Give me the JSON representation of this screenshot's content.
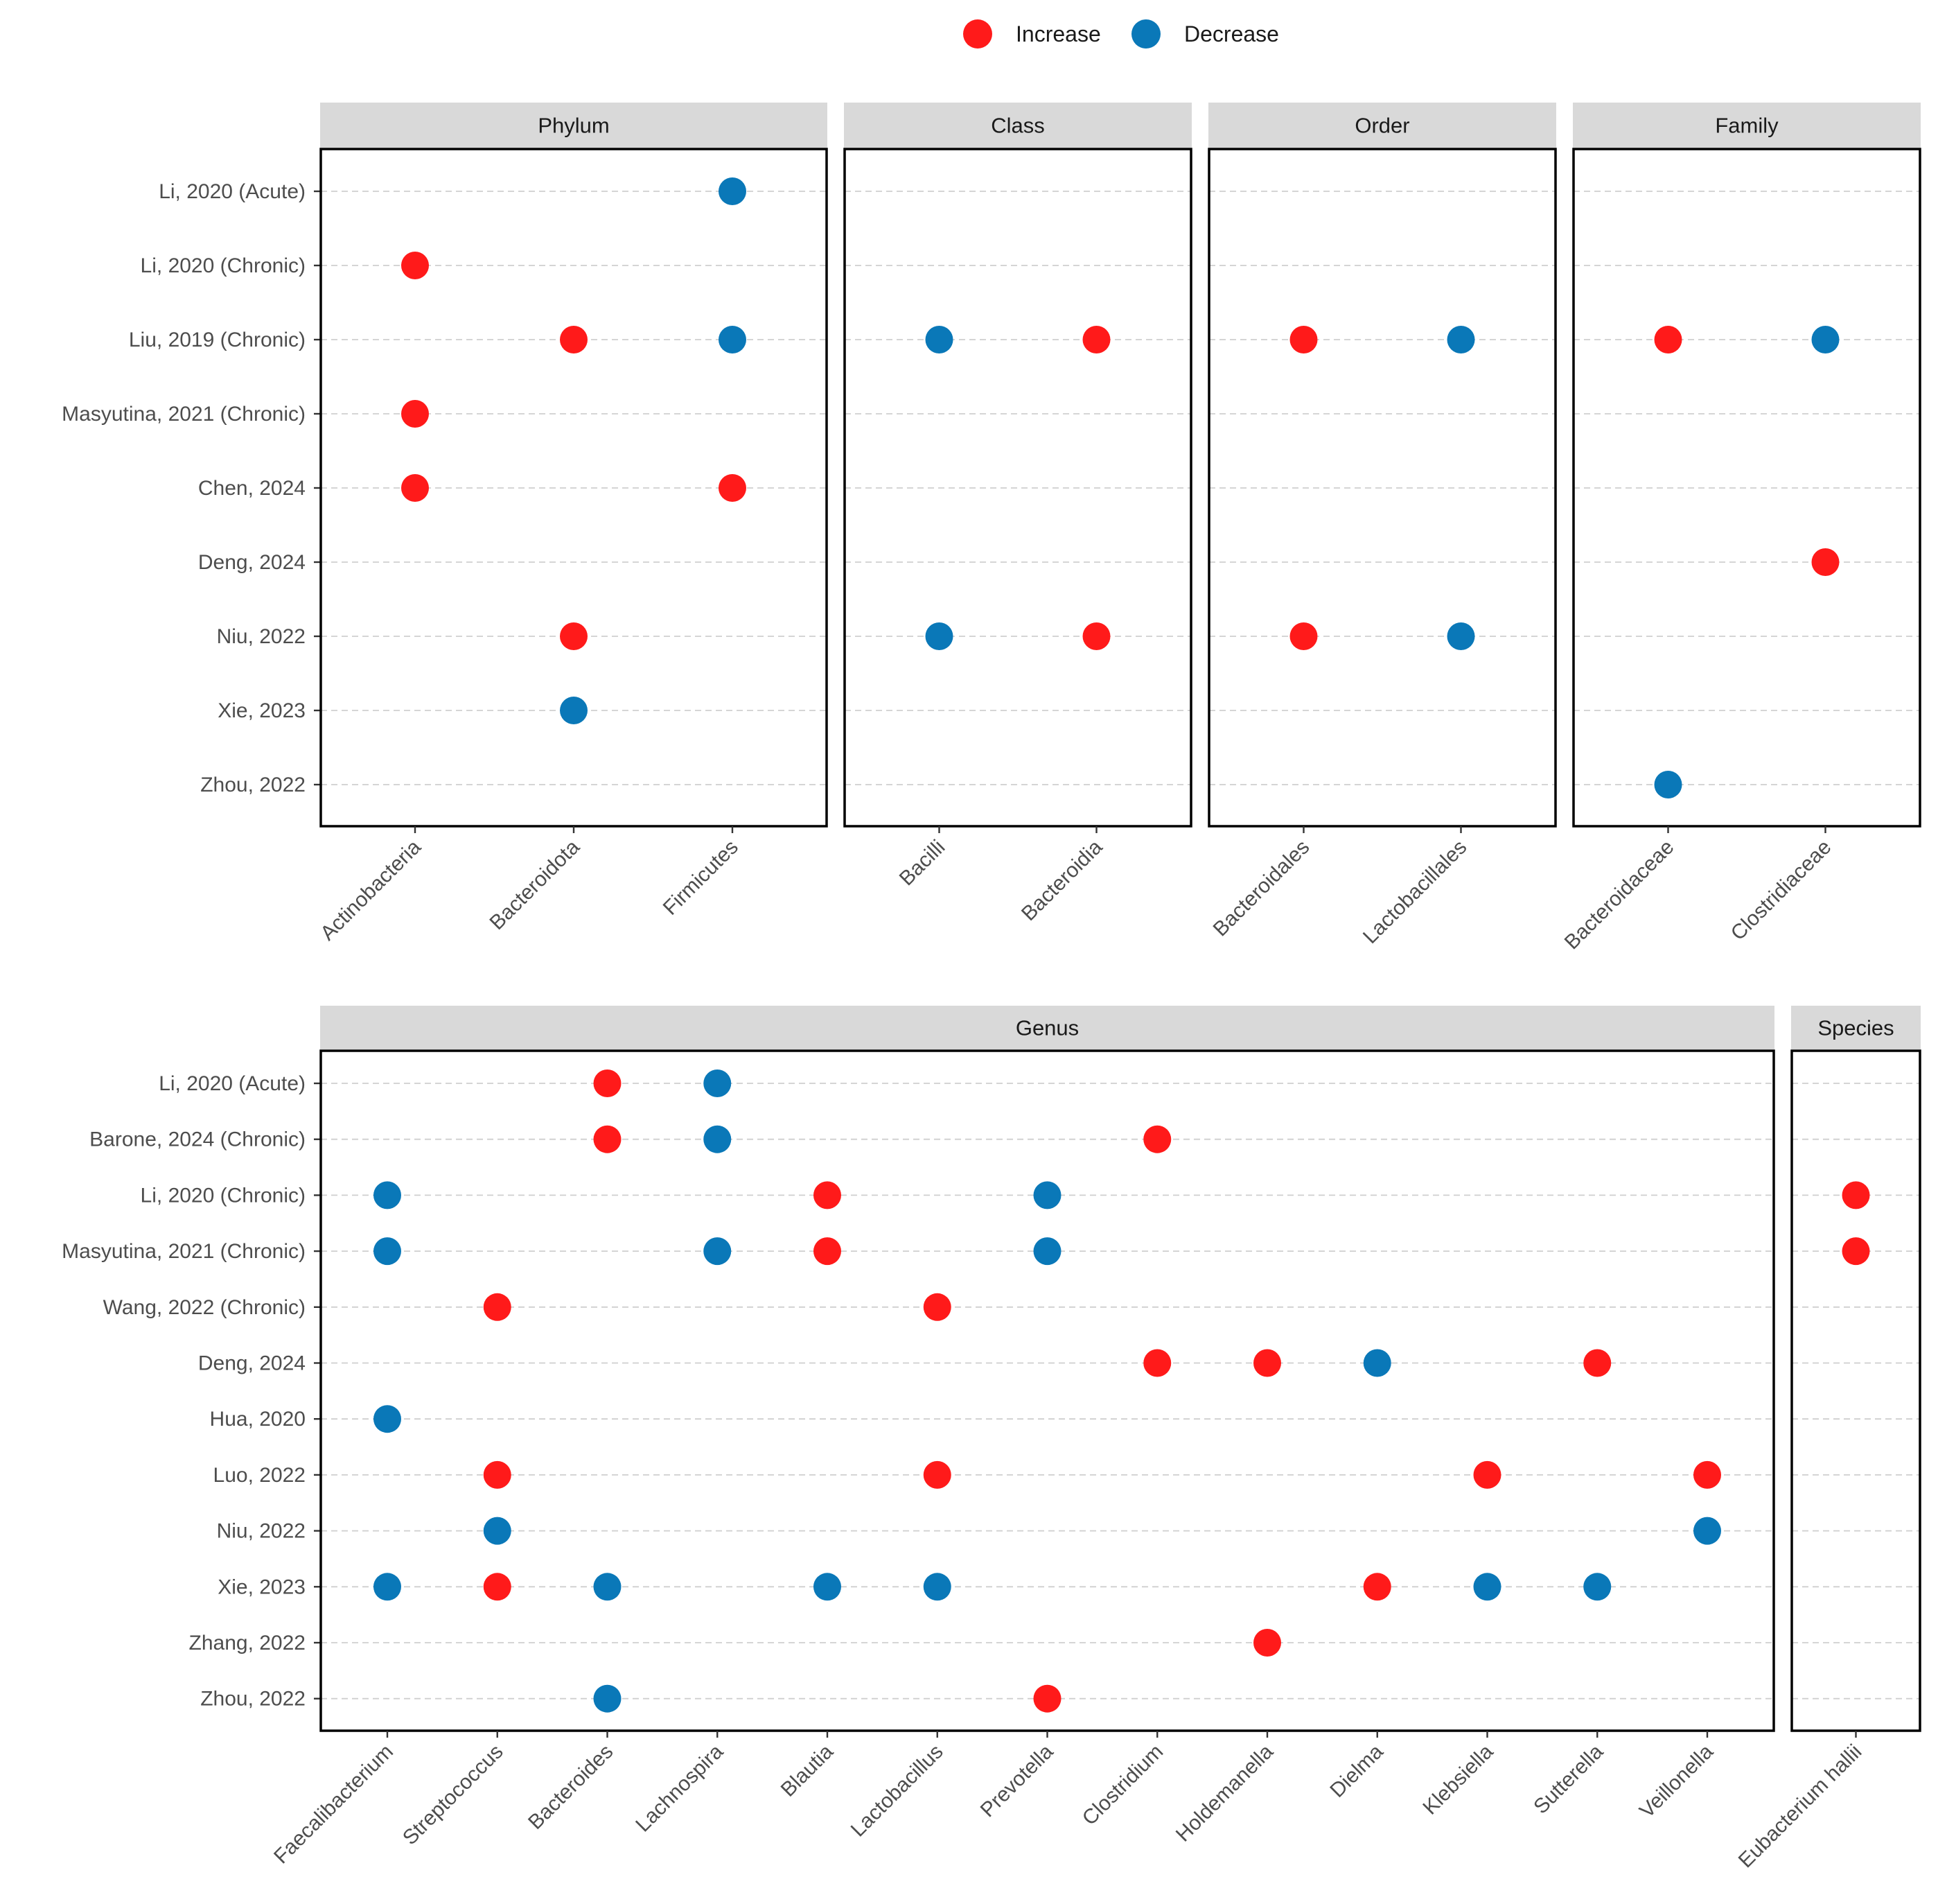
{
  "chart_data": [
    {
      "type": "scatter",
      "title": "",
      "colors": {
        "Increase": "#ff1a1a",
        "Decrease": "#0a78b8"
      },
      "y_categories": [
        "Li, 2020 (Acute)",
        "Li, 2020 (Chronic)",
        "Liu, 2019 (Chronic)",
        "Masyutina, 2021 (Chronic)",
        "Chen, 2024",
        "Deng, 2024",
        "Niu, 2022",
        "Xie, 2023",
        "Zhou, 2022"
      ],
      "facets": [
        {
          "label": "Phylum",
          "x_categories": [
            "Actinobacteria",
            "Bacteroidota",
            "Firmicutes"
          ],
          "points": [
            {
              "x": "Firmicutes",
              "y": "Li, 2020 (Acute)",
              "direction": "Decrease"
            },
            {
              "x": "Actinobacteria",
              "y": "Li, 2020 (Chronic)",
              "direction": "Increase"
            },
            {
              "x": "Bacteroidota",
              "y": "Liu, 2019 (Chronic)",
              "direction": "Increase"
            },
            {
              "x": "Firmicutes",
              "y": "Liu, 2019 (Chronic)",
              "direction": "Decrease"
            },
            {
              "x": "Actinobacteria",
              "y": "Masyutina, 2021 (Chronic)",
              "direction": "Increase"
            },
            {
              "x": "Actinobacteria",
              "y": "Chen, 2024",
              "direction": "Increase"
            },
            {
              "x": "Firmicutes",
              "y": "Chen, 2024",
              "direction": "Increase"
            },
            {
              "x": "Bacteroidota",
              "y": "Niu, 2022",
              "direction": "Increase"
            },
            {
              "x": "Bacteroidota",
              "y": "Xie, 2023",
              "direction": "Decrease"
            }
          ]
        },
        {
          "label": "Class",
          "x_categories": [
            "Bacilli",
            "Bacteroidia"
          ],
          "points": [
            {
              "x": "Bacilli",
              "y": "Liu, 2019 (Chronic)",
              "direction": "Decrease"
            },
            {
              "x": "Bacteroidia",
              "y": "Liu, 2019 (Chronic)",
              "direction": "Increase"
            },
            {
              "x": "Bacilli",
              "y": "Niu, 2022",
              "direction": "Decrease"
            },
            {
              "x": "Bacteroidia",
              "y": "Niu, 2022",
              "direction": "Increase"
            }
          ]
        },
        {
          "label": "Order",
          "x_categories": [
            "Bacteroidales",
            "Lactobacillales"
          ],
          "points": [
            {
              "x": "Bacteroidales",
              "y": "Liu, 2019 (Chronic)",
              "direction": "Increase"
            },
            {
              "x": "Lactobacillales",
              "y": "Liu, 2019 (Chronic)",
              "direction": "Decrease"
            },
            {
              "x": "Bacteroidales",
              "y": "Niu, 2022",
              "direction": "Increase"
            },
            {
              "x": "Lactobacillales",
              "y": "Niu, 2022",
              "direction": "Decrease"
            }
          ]
        },
        {
          "label": "Family",
          "x_categories": [
            "Bacteroidaceae",
            "Clostridiaceae"
          ],
          "points": [
            {
              "x": "Bacteroidaceae",
              "y": "Liu, 2019 (Chronic)",
              "direction": "Increase"
            },
            {
              "x": "Clostridiaceae",
              "y": "Liu, 2019 (Chronic)",
              "direction": "Decrease"
            },
            {
              "x": "Clostridiaceae",
              "y": "Deng, 2024",
              "direction": "Increase"
            },
            {
              "x": "Bacteroidaceae",
              "y": "Zhou, 2022",
              "direction": "Decrease"
            }
          ]
        }
      ]
    },
    {
      "type": "scatter",
      "title": "",
      "colors": {
        "Increase": "#ff1a1a",
        "Decrease": "#0a78b8"
      },
      "y_categories": [
        "Li, 2020 (Acute)",
        "Barone, 2024 (Chronic)",
        "Li, 2020 (Chronic)",
        "Masyutina, 2021 (Chronic)",
        "Wang, 2022 (Chronic)",
        "Deng, 2024",
        "Hua, 2020",
        "Luo, 2022",
        "Niu, 2022",
        "Xie, 2023",
        "Zhang, 2022",
        "Zhou, 2022"
      ],
      "facets": [
        {
          "label": "Genus",
          "x_categories": [
            "Faecalibacterium",
            "Streptococcus",
            "Bacteroides",
            "Lachnospira",
            "Blautia",
            "Lactobacillus",
            "Prevotella",
            "Clostridium",
            "Holdemanella",
            "Dielma",
            "Klebsiella",
            "Sutterella",
            "Veillonella"
          ],
          "points": [
            {
              "x": "Bacteroides",
              "y": "Li, 2020 (Acute)",
              "direction": "Increase"
            },
            {
              "x": "Lachnospira",
              "y": "Li, 2020 (Acute)",
              "direction": "Decrease"
            },
            {
              "x": "Bacteroides",
              "y": "Barone, 2024 (Chronic)",
              "direction": "Increase"
            },
            {
              "x": "Lachnospira",
              "y": "Barone, 2024 (Chronic)",
              "direction": "Decrease"
            },
            {
              "x": "Clostridium",
              "y": "Barone, 2024 (Chronic)",
              "direction": "Increase"
            },
            {
              "x": "Faecalibacterium",
              "y": "Li, 2020 (Chronic)",
              "direction": "Decrease"
            },
            {
              "x": "Blautia",
              "y": "Li, 2020 (Chronic)",
              "direction": "Increase"
            },
            {
              "x": "Prevotella",
              "y": "Li, 2020 (Chronic)",
              "direction": "Decrease"
            },
            {
              "x": "Faecalibacterium",
              "y": "Masyutina, 2021 (Chronic)",
              "direction": "Decrease"
            },
            {
              "x": "Lachnospira",
              "y": "Masyutina, 2021 (Chronic)",
              "direction": "Decrease"
            },
            {
              "x": "Blautia",
              "y": "Masyutina, 2021 (Chronic)",
              "direction": "Increase"
            },
            {
              "x": "Prevotella",
              "y": "Masyutina, 2021 (Chronic)",
              "direction": "Decrease"
            },
            {
              "x": "Streptococcus",
              "y": "Wang, 2022 (Chronic)",
              "direction": "Increase"
            },
            {
              "x": "Lactobacillus",
              "y": "Wang, 2022 (Chronic)",
              "direction": "Increase"
            },
            {
              "x": "Clostridium",
              "y": "Deng, 2024",
              "direction": "Increase"
            },
            {
              "x": "Holdemanella",
              "y": "Deng, 2024",
              "direction": "Increase"
            },
            {
              "x": "Dielma",
              "y": "Deng, 2024",
              "direction": "Decrease"
            },
            {
              "x": "Sutterella",
              "y": "Deng, 2024",
              "direction": "Increase"
            },
            {
              "x": "Faecalibacterium",
              "y": "Hua, 2020",
              "direction": "Decrease"
            },
            {
              "x": "Streptococcus",
              "y": "Luo, 2022",
              "direction": "Increase"
            },
            {
              "x": "Lactobacillus",
              "y": "Luo, 2022",
              "direction": "Increase"
            },
            {
              "x": "Klebsiella",
              "y": "Luo, 2022",
              "direction": "Increase"
            },
            {
              "x": "Veillonella",
              "y": "Luo, 2022",
              "direction": "Increase"
            },
            {
              "x": "Streptococcus",
              "y": "Niu, 2022",
              "direction": "Decrease"
            },
            {
              "x": "Veillonella",
              "y": "Niu, 2022",
              "direction": "Decrease"
            },
            {
              "x": "Faecalibacterium",
              "y": "Xie, 2023",
              "direction": "Decrease"
            },
            {
              "x": "Streptococcus",
              "y": "Xie, 2023",
              "direction": "Increase"
            },
            {
              "x": "Bacteroides",
              "y": "Xie, 2023",
              "direction": "Decrease"
            },
            {
              "x": "Blautia",
              "y": "Xie, 2023",
              "direction": "Decrease"
            },
            {
              "x": "Lactobacillus",
              "y": "Xie, 2023",
              "direction": "Decrease"
            },
            {
              "x": "Dielma",
              "y": "Xie, 2023",
              "direction": "Increase"
            },
            {
              "x": "Klebsiella",
              "y": "Xie, 2023",
              "direction": "Decrease"
            },
            {
              "x": "Sutterella",
              "y": "Xie, 2023",
              "direction": "Decrease"
            },
            {
              "x": "Holdemanella",
              "y": "Zhang, 2022",
              "direction": "Increase"
            },
            {
              "x": "Bacteroides",
              "y": "Zhou, 2022",
              "direction": "Decrease"
            },
            {
              "x": "Prevotella",
              "y": "Zhou, 2022",
              "direction": "Increase"
            }
          ]
        },
        {
          "label": "Species",
          "x_categories": [
            "Eubacterium hallii"
          ],
          "points": [
            {
              "x": "Eubacterium hallii",
              "y": "Li, 2020 (Chronic)",
              "direction": "Increase"
            },
            {
              "x": "Eubacterium hallii",
              "y": "Masyutina, 2021 (Chronic)",
              "direction": "Increase"
            }
          ]
        }
      ]
    }
  ],
  "legend": {
    "items": [
      {
        "label": "Increase",
        "color": "#ff1a1a"
      },
      {
        "label": "Decrease",
        "color": "#0a78b8"
      }
    ],
    "placement": "top-center"
  }
}
